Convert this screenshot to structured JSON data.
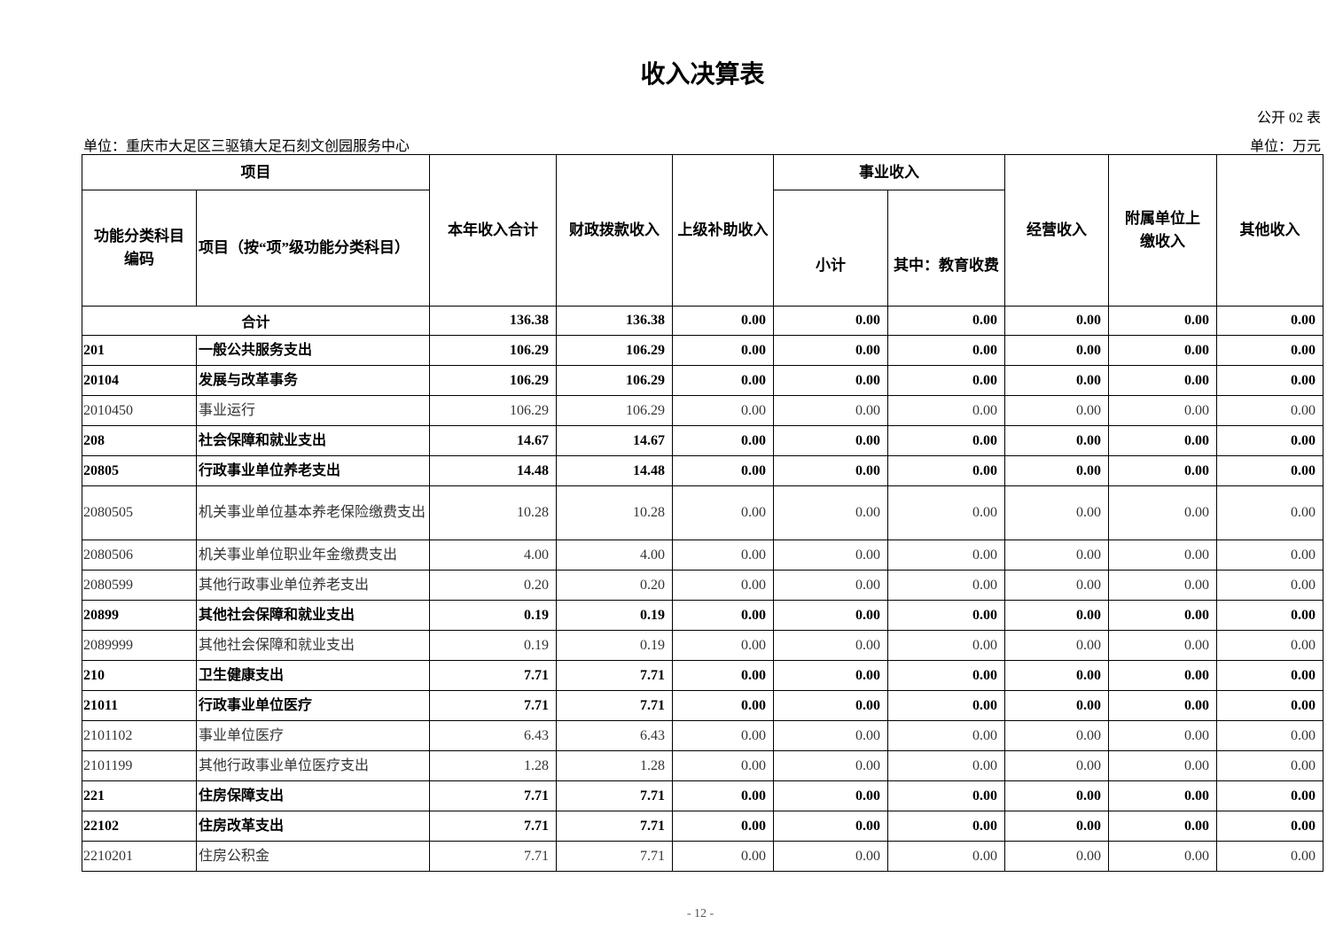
{
  "title": "收入决算表",
  "form_no": "公开 02 表",
  "unit_org": "单位：重庆市大足区三驱镇大足石刻文创园服务中心",
  "unit_currency": "单位：万元",
  "headers": {
    "project": "项目",
    "code": "功能分类科目编码",
    "name": "项目（按“项”级功能分类科目）",
    "total": "本年收入合计",
    "fiscal": "财政拨款收入",
    "superior": "上级补助收入",
    "business": "事业收入",
    "subtotal": "小计",
    "education": "其中：教育收费",
    "operating": "经营收入",
    "affiliated": "附属单位上缴收入",
    "other": "其他收入"
  },
  "total_row": {
    "label": "合计",
    "values": [
      "136.38",
      "136.38",
      "0.00",
      "0.00",
      "0.00",
      "0.00",
      "0.00",
      "0.00"
    ]
  },
  "rows": [
    {
      "code": "201",
      "name": "一般公共服务支出",
      "bold": true,
      "values": [
        "106.29",
        "106.29",
        "0.00",
        "0.00",
        "0.00",
        "0.00",
        "0.00",
        "0.00"
      ]
    },
    {
      "code": "20104",
      "name": "发展与改革事务",
      "bold": true,
      "values": [
        "106.29",
        "106.29",
        "0.00",
        "0.00",
        "0.00",
        "0.00",
        "0.00",
        "0.00"
      ]
    },
    {
      "code": "2010450",
      "name": "事业运行",
      "bold": false,
      "values": [
        "106.29",
        "106.29",
        "0.00",
        "0.00",
        "0.00",
        "0.00",
        "0.00",
        "0.00"
      ]
    },
    {
      "code": "208",
      "name": "社会保障和就业支出",
      "bold": true,
      "values": [
        "14.67",
        "14.67",
        "0.00",
        "0.00",
        "0.00",
        "0.00",
        "0.00",
        "0.00"
      ]
    },
    {
      "code": "20805",
      "name": "行政事业单位养老支出",
      "bold": true,
      "values": [
        "14.48",
        "14.48",
        "0.00",
        "0.00",
        "0.00",
        "0.00",
        "0.00",
        "0.00"
      ]
    },
    {
      "code": "2080505",
      "name": "机关事业单位基本养老保险缴费支出",
      "bold": false,
      "values": [
        "10.28",
        "10.28",
        "0.00",
        "0.00",
        "0.00",
        "0.00",
        "0.00",
        "0.00"
      ]
    },
    {
      "code": "2080506",
      "name": "机关事业单位职业年金缴费支出",
      "bold": false,
      "values": [
        "4.00",
        "4.00",
        "0.00",
        "0.00",
        "0.00",
        "0.00",
        "0.00",
        "0.00"
      ]
    },
    {
      "code": "2080599",
      "name": "其他行政事业单位养老支出",
      "bold": false,
      "values": [
        "0.20",
        "0.20",
        "0.00",
        "0.00",
        "0.00",
        "0.00",
        "0.00",
        "0.00"
      ]
    },
    {
      "code": "20899",
      "name": "其他社会保障和就业支出",
      "bold": true,
      "values": [
        "0.19",
        "0.19",
        "0.00",
        "0.00",
        "0.00",
        "0.00",
        "0.00",
        "0.00"
      ]
    },
    {
      "code": "2089999",
      "name": "其他社会保障和就业支出",
      "bold": false,
      "values": [
        "0.19",
        "0.19",
        "0.00",
        "0.00",
        "0.00",
        "0.00",
        "0.00",
        "0.00"
      ]
    },
    {
      "code": "210",
      "name": "卫生健康支出",
      "bold": true,
      "values": [
        "7.71",
        "7.71",
        "0.00",
        "0.00",
        "0.00",
        "0.00",
        "0.00",
        "0.00"
      ]
    },
    {
      "code": "21011",
      "name": "行政事业单位医疗",
      "bold": true,
      "values": [
        "7.71",
        "7.71",
        "0.00",
        "0.00",
        "0.00",
        "0.00",
        "0.00",
        "0.00"
      ]
    },
    {
      "code": "2101102",
      "name": "事业单位医疗",
      "bold": false,
      "values": [
        "6.43",
        "6.43",
        "0.00",
        "0.00",
        "0.00",
        "0.00",
        "0.00",
        "0.00"
      ]
    },
    {
      "code": "2101199",
      "name": "其他行政事业单位医疗支出",
      "bold": false,
      "values": [
        "1.28",
        "1.28",
        "0.00",
        "0.00",
        "0.00",
        "0.00",
        "0.00",
        "0.00"
      ]
    },
    {
      "code": "221",
      "name": "住房保障支出",
      "bold": true,
      "values": [
        "7.71",
        "7.71",
        "0.00",
        "0.00",
        "0.00",
        "0.00",
        "0.00",
        "0.00"
      ]
    },
    {
      "code": "22102",
      "name": "住房改革支出",
      "bold": true,
      "values": [
        "7.71",
        "7.71",
        "0.00",
        "0.00",
        "0.00",
        "0.00",
        "0.00",
        "0.00"
      ]
    },
    {
      "code": "2210201",
      "name": "住房公积金",
      "bold": false,
      "values": [
        "7.71",
        "7.71",
        "0.00",
        "0.00",
        "0.00",
        "0.00",
        "0.00",
        "0.00"
      ]
    }
  ],
  "page_number": "- 12 -"
}
